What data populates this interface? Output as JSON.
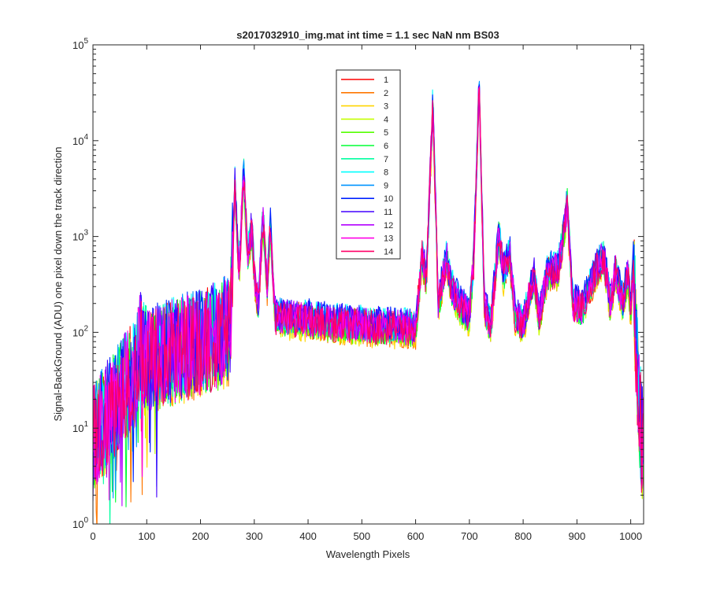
{
  "chart_data": {
    "type": "line",
    "title": "s2017032910_img.mat int time = 1.1 sec  NaN nm BS03",
    "xlabel": "Wavelength Pixels",
    "ylabel": "Signal-BackGround (ADU) one pixel down the track direction",
    "xlim": [
      0,
      1024
    ],
    "ylim": [
      1,
      100000
    ],
    "yscale": "log",
    "grid": false,
    "legend_position": "top-center",
    "x_ticks": [
      0,
      100,
      200,
      300,
      400,
      500,
      600,
      700,
      800,
      900,
      1000
    ],
    "x_tick_labels": [
      "0",
      "100",
      "200",
      "300",
      "400",
      "500",
      "600",
      "700",
      "800",
      "900",
      "1000"
    ],
    "y_ticks": [
      1,
      10,
      100,
      1000,
      10000,
      100000
    ],
    "y_tick_labels": [
      {
        "base": "10",
        "exp": "0"
      },
      {
        "base": "10",
        "exp": "1"
      },
      {
        "base": "10",
        "exp": "2"
      },
      {
        "base": "10",
        "exp": "3"
      },
      {
        "base": "10",
        "exp": "4"
      },
      {
        "base": "10",
        "exp": "5"
      }
    ],
    "approx_profile": [
      [
        0,
        8
      ],
      [
        20,
        12
      ],
      [
        40,
        18
      ],
      [
        60,
        28
      ],
      [
        80,
        40
      ],
      [
        88,
        75
      ],
      [
        95,
        55
      ],
      [
        110,
        50
      ],
      [
        140,
        60
      ],
      [
        170,
        70
      ],
      [
        200,
        80
      ],
      [
        230,
        90
      ],
      [
        255,
        110
      ],
      [
        264,
        3400
      ],
      [
        272,
        400
      ],
      [
        280,
        5000
      ],
      [
        288,
        600
      ],
      [
        295,
        1200
      ],
      [
        302,
        300
      ],
      [
        308,
        200
      ],
      [
        316,
        1700
      ],
      [
        324,
        300
      ],
      [
        330,
        1300
      ],
      [
        338,
        150
      ],
      [
        360,
        140
      ],
      [
        400,
        135
      ],
      [
        450,
        125
      ],
      [
        500,
        120
      ],
      [
        550,
        115
      ],
      [
        600,
        110
      ],
      [
        612,
        650
      ],
      [
        620,
        350
      ],
      [
        632,
        25000
      ],
      [
        642,
        200
      ],
      [
        658,
        600
      ],
      [
        666,
        300
      ],
      [
        680,
        200
      ],
      [
        700,
        150
      ],
      [
        708,
        550
      ],
      [
        718,
        35000
      ],
      [
        728,
        180
      ],
      [
        740,
        120
      ],
      [
        755,
        1100
      ],
      [
        763,
        400
      ],
      [
        775,
        650
      ],
      [
        785,
        150
      ],
      [
        800,
        120
      ],
      [
        820,
        400
      ],
      [
        830,
        140
      ],
      [
        845,
        420
      ],
      [
        865,
        450
      ],
      [
        872,
        800
      ],
      [
        882,
        2200
      ],
      [
        892,
        200
      ],
      [
        910,
        180
      ],
      [
        935,
        450
      ],
      [
        950,
        600
      ],
      [
        962,
        200
      ],
      [
        972,
        450
      ],
      [
        985,
        200
      ],
      [
        995,
        420
      ],
      [
        1000,
        150
      ],
      [
        1005,
        550
      ],
      [
        1010,
        80
      ],
      [
        1015,
        20
      ],
      [
        1020,
        8
      ],
      [
        1024,
        5
      ]
    ],
    "series": [
      {
        "name": "1",
        "color": "#ff0000",
        "scale": 1.0
      },
      {
        "name": "2",
        "color": "#ff7700",
        "scale": 0.9
      },
      {
        "name": "3",
        "color": "#ffd500",
        "scale": 0.88
      },
      {
        "name": "4",
        "color": "#c4ff00",
        "scale": 0.92
      },
      {
        "name": "5",
        "color": "#55ff00",
        "scale": 0.95
      },
      {
        "name": "6",
        "color": "#00ff33",
        "scale": 0.97
      },
      {
        "name": "7",
        "color": "#00ffa0",
        "scale": 1.0
      },
      {
        "name": "8",
        "color": "#00ffff",
        "scale": 1.08
      },
      {
        "name": "9",
        "color": "#0095ff",
        "scale": 1.05
      },
      {
        "name": "10",
        "color": "#0022ff",
        "scale": 1.1
      },
      {
        "name": "11",
        "color": "#4400ff",
        "scale": 1.06
      },
      {
        "name": "12",
        "color": "#b300ff",
        "scale": 1.02
      },
      {
        "name": "13",
        "color": "#ff00e6",
        "scale": 0.99
      },
      {
        "name": "14",
        "color": "#ff0066",
        "scale": 0.96
      }
    ]
  }
}
